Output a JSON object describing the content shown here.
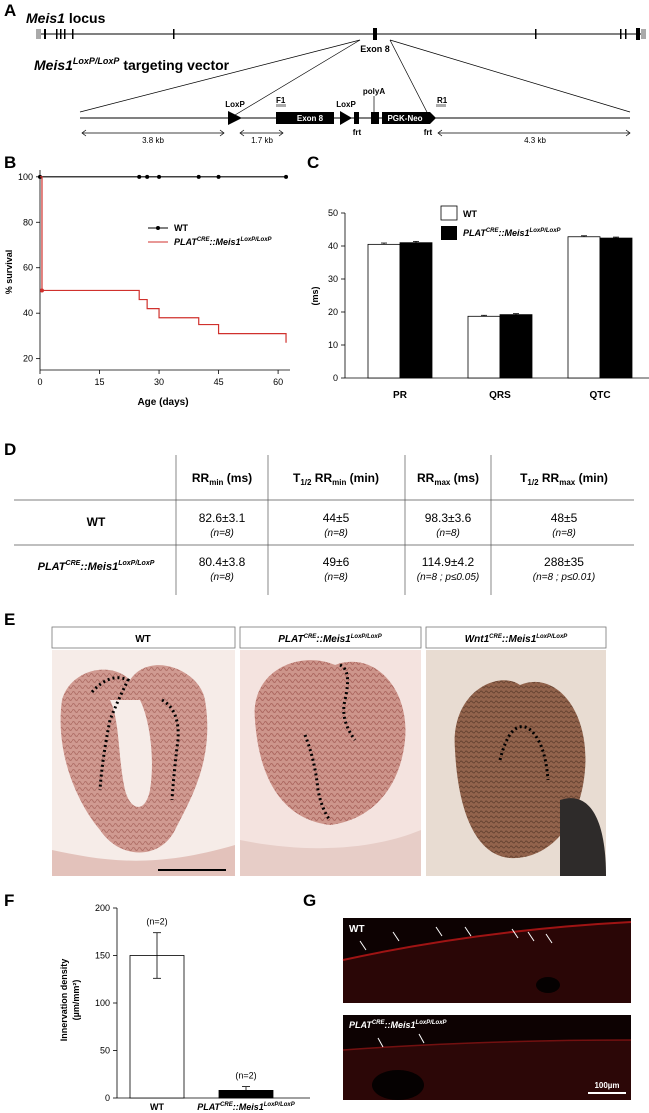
{
  "panel_letters": {
    "A": "A",
    "B": "B",
    "C": "C",
    "D": "D",
    "E": "E",
    "F": "F",
    "G": "G"
  },
  "panel_a": {
    "locus_name": "Meis1",
    "locus_suffix": "locus",
    "exon_label": "Exon 8",
    "vector_name": "Meis1",
    "vector_sup": "LoxP/LoxP",
    "vector_suffix": "targeting vector",
    "labels": {
      "loxp1": "LoxP",
      "f1": "F1",
      "exon8": "Exon 8",
      "loxp2": "LoxP",
      "polya": "polyA",
      "pgkneo": "PGK-Neo",
      "r1": "R1",
      "frt1": "frt",
      "frt2": "frt"
    },
    "distances": [
      "3.8 kb",
      "1.7 kb",
      "4.3 kb"
    ]
  },
  "panel_b": {
    "ylabel": "% survival",
    "xlabel": "Age (days)",
    "yticks": [
      "20",
      "40",
      "60",
      "80",
      "100"
    ],
    "xticks": [
      "0",
      "15",
      "30",
      "45",
      "60"
    ],
    "legend": [
      {
        "label": "WT",
        "color": "#000000"
      },
      {
        "label": "PLAT",
        "sup1": "CRE",
        "mid": "::Meis1",
        "sup2": "LoxP/LoxP",
        "color": "#d0312d"
      }
    ]
  },
  "chart_data": [
    {
      "type": "line",
      "xlabel": "Age (days)",
      "ylabel": "% survival",
      "xlim": [
        0,
        63
      ],
      "ylim": [
        15,
        103
      ],
      "series": [
        {
          "name": "WT",
          "color": "#000000",
          "x": [
            0,
            62
          ],
          "y": [
            100,
            100
          ],
          "censor_x": [
            0,
            25,
            27,
            30,
            40,
            45,
            62
          ]
        },
        {
          "name": "PLAT::Meis1 LoxP/LoxP",
          "color": "#d0312d",
          "x": [
            0,
            0.5,
            0.5,
            25,
            25,
            27,
            27,
            30,
            30,
            40,
            40,
            45,
            45,
            62,
            62
          ],
          "y": [
            100,
            100,
            50,
            50,
            46,
            46,
            42,
            42,
            38,
            38,
            35,
            35,
            31,
            31,
            27
          ],
          "censor_x": [
            0.5
          ]
        }
      ]
    },
    {
      "type": "bar",
      "ylabel": "(ms)",
      "categories": [
        "PR",
        "QRS",
        "QTC"
      ],
      "ylim": [
        0,
        50
      ],
      "series": [
        {
          "name": "WT",
          "color": "#ffffff",
          "values": [
            40.5,
            18.7,
            42.8
          ],
          "errors": [
            0.4,
            0.3,
            0.3
          ]
        },
        {
          "name": "PLAT::Meis1 LoxP/LoxP",
          "color": "#000000",
          "values": [
            41.0,
            19.2,
            42.4
          ],
          "errors": [
            0.4,
            0.3,
            0.3
          ]
        }
      ]
    },
    {
      "type": "table",
      "columns": [
        "",
        "RRmin (ms)",
        "T1/2 RRmin (min)",
        "RRmax (ms)",
        "T1/2 RRmax (min)"
      ],
      "rows": [
        {
          "label": "WT",
          "cells": [
            [
              "82.6±3.1",
              "(n=8)"
            ],
            [
              "44±5",
              "(n=8)"
            ],
            [
              "98.3±3.6",
              "(n=8)"
            ],
            [
              "48±5",
              "(n=8)"
            ]
          ]
        },
        {
          "label": "PLAT::Meis1 LoxP/LoxP",
          "cells": [
            [
              "80.4±3.8",
              "(n=8)"
            ],
            [
              "49±6",
              "(n=8)"
            ],
            [
              "114.9±4.2",
              "(n=8 ; p≤0.05)"
            ],
            [
              "288±35",
              "(n=8 ; p≤0.01)"
            ]
          ]
        }
      ]
    },
    {
      "type": "bar",
      "ylabel": "Innervation density (µm/mm²)",
      "categories": [
        "WT",
        "PLAT::Meis1 LoxP/LoxP"
      ],
      "ylim": [
        0,
        200
      ],
      "series": [
        {
          "values": [
            150,
            8
          ],
          "errors": [
            24,
            4
          ],
          "colors": [
            "#ffffff",
            "#000000"
          ],
          "annotations": [
            "(n=2)",
            "(n=2)"
          ]
        }
      ]
    }
  ],
  "panel_c": {
    "ylabel": "(ms)",
    "yticks": [
      "0",
      "10",
      "20",
      "30",
      "40",
      "50"
    ],
    "legend_wt": "WT",
    "legend_plat": {
      "a": "PLAT",
      "sup1": "CRE",
      "b": "::Meis1",
      "sup2": "LoxP/LoxP"
    }
  },
  "panel_d": {
    "headers": [
      {
        "main": "RR",
        "sub": "min",
        "rest": " (ms)"
      },
      {
        "pre": "T",
        "presub": "1/2",
        "main": " RR",
        "sub": "min",
        "rest": " (min)"
      },
      {
        "main": "RR",
        "sub": "max",
        "rest": " (ms)"
      },
      {
        "pre": "T",
        "presub": "1/2",
        "main": " RR",
        "sub": "max",
        "rest": " (min)"
      }
    ],
    "row_wt": "WT",
    "row_plat": {
      "a": "PLAT",
      "sup1": "CRE",
      "b": "::Meis1",
      "sup2": "LoxP/LoxP"
    }
  },
  "panel_e": {
    "titles": [
      {
        "a": "WT"
      },
      {
        "a": "PLAT",
        "sup1": "CRE",
        "b": "::Meis1",
        "sup2": "LoxP/LoxP"
      },
      {
        "a": "Wnt1",
        "sup1": "CRE",
        "b": "::Meis1",
        "sup2": "LoxP/LoxP"
      }
    ]
  },
  "panel_f": {
    "ylabel1": "Innervation density",
    "ylabel2": "(µm/mm²)",
    "yticks": [
      "0",
      "50",
      "100",
      "150",
      "200"
    ],
    "xlabels": {
      "wt": "WT",
      "plat": {
        "a": "PLAT",
        "sup1": "CRE",
        "b": "::Meis1",
        "sup2": "LoxP/LoxP"
      }
    },
    "annot": [
      "(n=2)",
      "(n=2)"
    ]
  },
  "panel_g": {
    "label_top": "WT",
    "label_bottom": {
      "a": "PLAT",
      "sup1": "CRE",
      "b": "::Meis1",
      "sup2": "LoxP/LoxP"
    },
    "scale_bar": "100µm"
  }
}
